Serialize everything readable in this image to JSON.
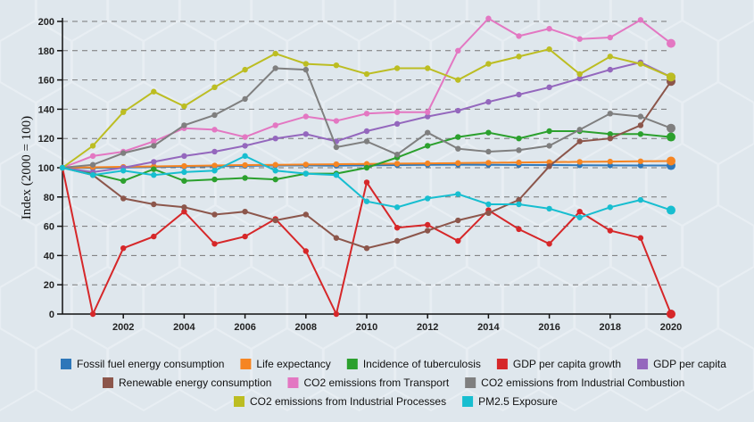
{
  "chart_data": {
    "type": "line",
    "title": "",
    "xlabel": "",
    "ylabel": "Index (2000 = 100)",
    "x": [
      2000,
      2001,
      2002,
      2003,
      2004,
      2005,
      2006,
      2007,
      2008,
      2009,
      2010,
      2011,
      2012,
      2013,
      2014,
      2015,
      2016,
      2017,
      2018,
      2019,
      2020
    ],
    "xticks": [
      2002,
      2004,
      2006,
      2008,
      2010,
      2012,
      2014,
      2016,
      2018,
      2020
    ],
    "yticks": [
      0,
      20,
      40,
      60,
      80,
      100,
      120,
      140,
      160,
      180,
      200
    ],
    "xlim": [
      2000,
      2020
    ],
    "ylim": [
      0,
      200
    ],
    "grid": true,
    "legend_position": "bottom",
    "series": [
      {
        "name": "Fossil fuel energy consumption",
        "color": "#2e77b9",
        "values": [
          100,
          99.8,
          100.2,
          100.5,
          100.8,
          101,
          101.3,
          101.5,
          101.6,
          101.4,
          101.6,
          101.8,
          102,
          102.1,
          102,
          101.9,
          101.8,
          101.7,
          101.6,
          101.5,
          101.5
        ]
      },
      {
        "name": "Life expectancy",
        "color": "#f68522",
        "values": [
          100,
          100.3,
          100.6,
          100.9,
          101.2,
          101.5,
          101.8,
          102,
          102.2,
          102.4,
          102.6,
          102.8,
          103,
          103.2,
          103.4,
          103.6,
          103.8,
          104,
          104.2,
          104.4,
          104.6
        ]
      },
      {
        "name": "Incidence of tuberculosis",
        "color": "#2ba02d",
        "values": [
          100,
          96,
          91,
          99,
          91,
          92,
          93,
          92,
          96,
          96,
          100,
          107,
          115,
          121,
          124,
          120,
          125,
          125,
          123,
          123,
          121
        ]
      },
      {
        "name": "GDP per capita growth",
        "color": "#d62729",
        "values": [
          100,
          0,
          45,
          53,
          70,
          48,
          53,
          65,
          43,
          0,
          90,
          59,
          61,
          50,
          71,
          58,
          48,
          70,
          57,
          52,
          0
        ]
      },
      {
        "name": "GDP per capita",
        "color": "#9467bd",
        "values": [
          100,
          97,
          100,
          104,
          108,
          111,
          115,
          120,
          123,
          118,
          125,
          130,
          135,
          139,
          145,
          150,
          155,
          161,
          167,
          172,
          162
        ]
      },
      {
        "name": "Renewable energy consumption",
        "color": "#8c564b",
        "values": [
          100,
          95,
          79,
          75,
          73,
          68,
          70,
          64,
          68,
          52,
          45,
          50,
          57,
          64,
          69,
          78,
          101,
          118,
          120,
          129,
          159
        ]
      },
      {
        "name": "CO2 emissions from Transport",
        "color": "#e377c2",
        "values": [
          100,
          108,
          111,
          118,
          127,
          126,
          121,
          129,
          135,
          132,
          137,
          138,
          138,
          180,
          202,
          190,
          195,
          188,
          189,
          201,
          185
        ]
      },
      {
        "name": "CO2 emissions from Industrial Combustion",
        "color": "#7f7f7f",
        "values": [
          100,
          102,
          110,
          115,
          129,
          136,
          147,
          168,
          167,
          114,
          118,
          109,
          124,
          113,
          111,
          112,
          115,
          126,
          137,
          135,
          127
        ]
      },
      {
        "name": "CO2 emissions from Industrial Processes",
        "color": "#bcbd22",
        "values": [
          100,
          115,
          138,
          152,
          142,
          155,
          167,
          178,
          171,
          170,
          164,
          168,
          168,
          160,
          171,
          176,
          181,
          164,
          176,
          171,
          162
        ]
      },
      {
        "name": "PM2.5 Exposure",
        "color": "#17bed0",
        "values": [
          100,
          95,
          98,
          95,
          97,
          98,
          108,
          98,
          96,
          95,
          77,
          73,
          79,
          82,
          75,
          75,
          72,
          66,
          73,
          78,
          71
        ]
      }
    ]
  }
}
